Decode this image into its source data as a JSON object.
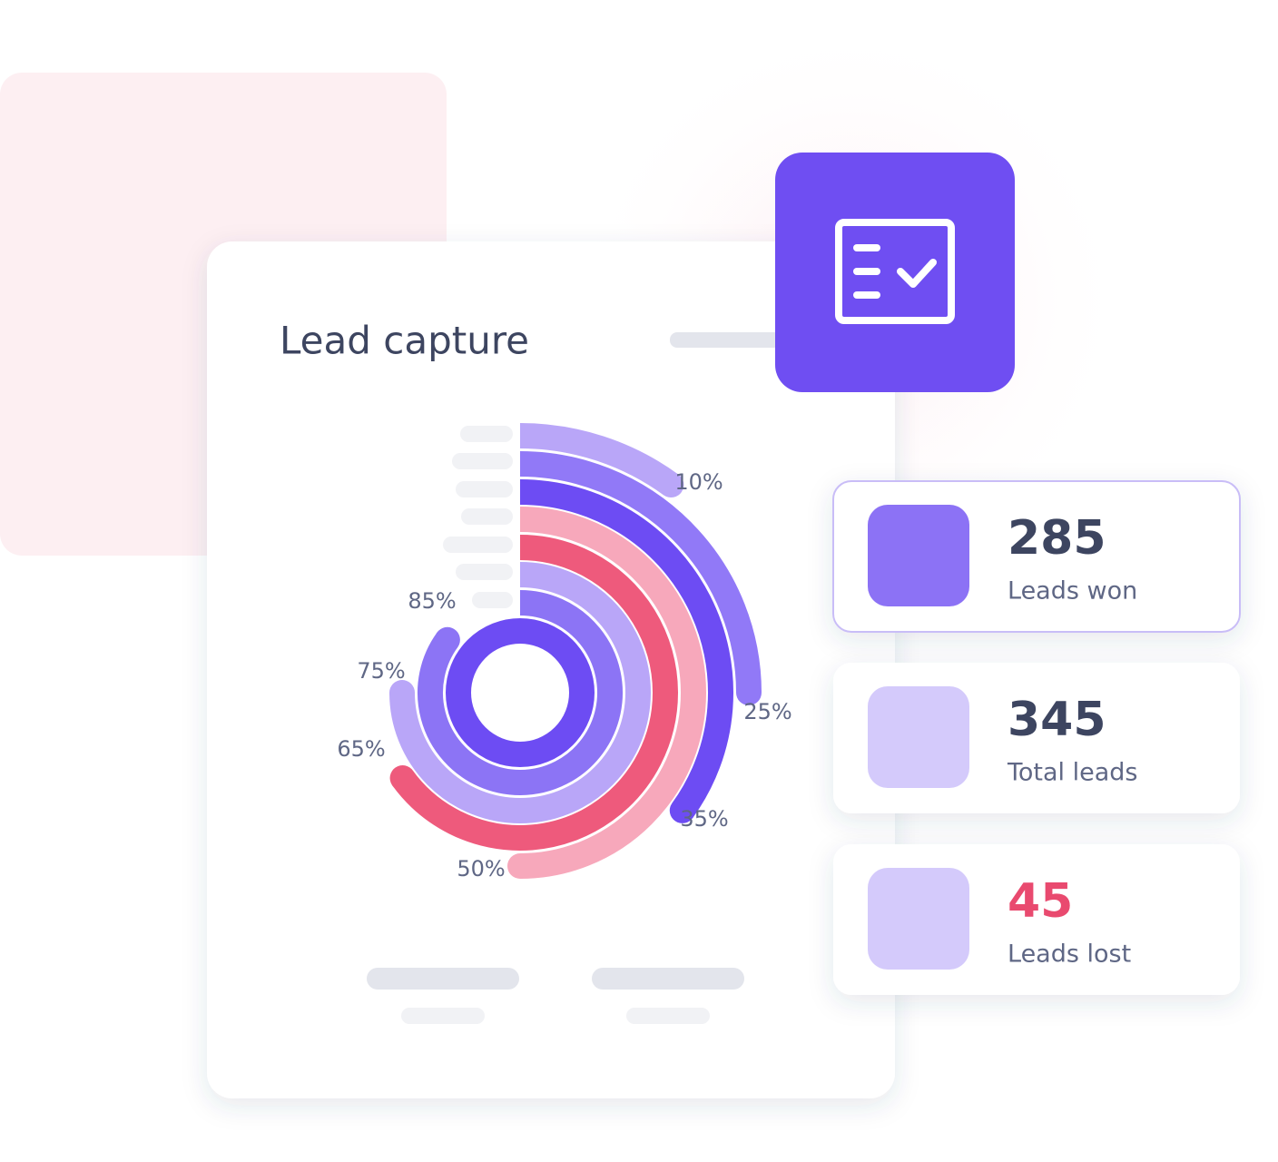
{
  "chart_data": {
    "type": "radialbar",
    "title": "Lead capture",
    "values": [
      10,
      25,
      35,
      50,
      65,
      75,
      85
    ],
    "value_labels": [
      "10%",
      "25%",
      "35%",
      "50%",
      "65%",
      "75%",
      "85%"
    ],
    "colors": [
      "#b9a6f8",
      "#9179f7",
      "#6d4cf3",
      "#f7a8bb",
      "#ee5a7c",
      "#b9a6f8",
      "#8c74f5"
    ],
    "full": 100
  },
  "stats": [
    {
      "value": 285,
      "label": "Leads won",
      "color": "#3d4560",
      "swatch": "#8c72f5"
    },
    {
      "value": 345,
      "label": "Total leads",
      "color": "#3d4560",
      "swatch": "#d4cafb"
    },
    {
      "value": 45,
      "label": "Leads lost",
      "color": "#e94a6f",
      "swatch": "#d4cafb"
    }
  ]
}
